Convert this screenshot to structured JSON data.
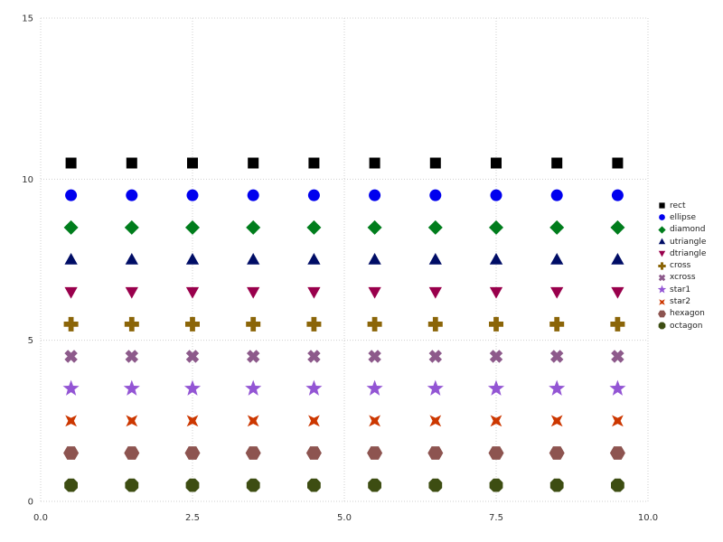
{
  "chart_data": {
    "type": "scatter",
    "title": "",
    "xlabel": "",
    "ylabel": "",
    "grid": "dotted",
    "legend_position": "right",
    "xlim": [
      0,
      10
    ],
    "ylim": [
      0,
      15
    ],
    "xtick_values": [
      0,
      2.5,
      5,
      7.5,
      10
    ],
    "xtick_labels": [
      "0.0",
      "2.5",
      "5.0",
      "7.5",
      "10.0"
    ],
    "ytick_values": [
      0,
      5,
      10,
      15
    ],
    "ytick_labels": [
      "0",
      "5",
      "10",
      "15"
    ],
    "x": [
      0.5,
      1.5,
      2.5,
      3.5,
      4.5,
      5.5,
      6.5,
      7.5,
      8.5,
      9.5
    ],
    "series": [
      {
        "name": "rect",
        "shape": "rect",
        "color": "#000000",
        "y": 10.5
      },
      {
        "name": "ellipse",
        "shape": "ellipse",
        "color": "#0000ee",
        "y": 9.5
      },
      {
        "name": "diamond",
        "shape": "diamond",
        "color": "#007d1c",
        "y": 8.5
      },
      {
        "name": "utriangle",
        "shape": "utriangle",
        "color": "#000d66",
        "y": 7.5
      },
      {
        "name": "dtriangle",
        "shape": "dtriangle",
        "color": "#99004c",
        "y": 6.5
      },
      {
        "name": "cross",
        "shape": "cross",
        "color": "#8b6508",
        "y": 5.5
      },
      {
        "name": "xcross",
        "shape": "xcross",
        "color": "#8d5a8b",
        "y": 4.5
      },
      {
        "name": "star1",
        "shape": "star1",
        "color": "#9355d4",
        "y": 3.5
      },
      {
        "name": "star2",
        "shape": "star2",
        "color": "#cc3700",
        "y": 2.5
      },
      {
        "name": "hexagon",
        "shape": "hexagon",
        "color": "#8d5450",
        "y": 1.5
      },
      {
        "name": "octagon",
        "shape": "octagon",
        "color": "#3d4d12",
        "y": 0.5
      }
    ],
    "colors": {
      "grid": "#cfcfcf",
      "tick_text": "#333333",
      "background": "#ffffff"
    }
  }
}
